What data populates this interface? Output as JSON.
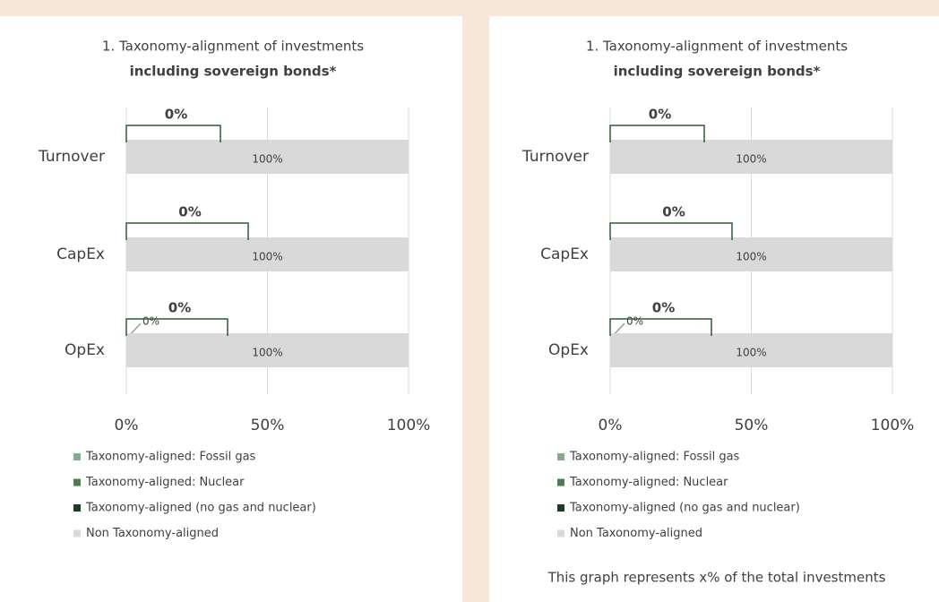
{
  "chart_data": [
    {
      "type": "stacked-barh",
      "title": "1. Taxonomy-alignment of investments",
      "subtitle": "including sovereign bonds*",
      "categories": [
        "Turnover",
        "CapEx",
        "OpEx"
      ],
      "series": [
        {
          "name": "Taxonomy-aligned: Fossil gas",
          "color": "#86a98a",
          "values": [
            0,
            0,
            0
          ],
          "value_labels": [
            null,
            null,
            "0%"
          ]
        },
        {
          "name": "Taxonomy-aligned: Nuclear",
          "color": "#4f7a55",
          "values": [
            0,
            0,
            0
          ]
        },
        {
          "name": "Taxonomy-aligned (no gas and nuclear)",
          "color": "#1f3a22",
          "values": [
            0,
            0,
            0
          ]
        },
        {
          "name": "Non Taxonomy-aligned",
          "color": "#d9d9d9",
          "values": [
            100,
            100,
            100
          ],
          "value_labels": [
            "100%",
            "100%",
            "100%"
          ]
        }
      ],
      "aligned_totals": [
        0,
        0,
        0
      ],
      "aligned_total_labels": [
        "0%",
        "0%",
        "0%"
      ],
      "xlim": [
        0,
        100
      ],
      "xticks": [
        {
          "value": 0,
          "label": "0%"
        },
        {
          "value": 50,
          "label": "50%"
        },
        {
          "value": 100,
          "label": "100%"
        }
      ],
      "grid": true
    },
    {
      "type": "stacked-barh",
      "title": "1. Taxonomy-alignment of investments",
      "subtitle": "including sovereign bonds*",
      "categories": [
        "Turnover",
        "CapEx",
        "OpEx"
      ],
      "series": [
        {
          "name": "Taxonomy-aligned: Fossil gas",
          "color": "#86a98a",
          "values": [
            0,
            0,
            0
          ],
          "value_labels": [
            null,
            null,
            "0%"
          ]
        },
        {
          "name": "Taxonomy-aligned: Nuclear",
          "color": "#4f7a55",
          "values": [
            0,
            0,
            0
          ]
        },
        {
          "name": "Taxonomy-aligned (no gas and nuclear)",
          "color": "#1f3a22",
          "values": [
            0,
            0,
            0
          ]
        },
        {
          "name": "Non Taxonomy-aligned",
          "color": "#d9d9d9",
          "values": [
            100,
            100,
            100
          ],
          "value_labels": [
            "100%",
            "100%",
            "100%"
          ]
        }
      ],
      "aligned_totals": [
        0,
        0,
        0
      ],
      "aligned_total_labels": [
        "0%",
        "0%",
        "0%"
      ],
      "xlim": [
        0,
        100
      ],
      "xticks": [
        {
          "value": 0,
          "label": "0%"
        },
        {
          "value": 50,
          "label": "50%"
        },
        {
          "value": 100,
          "label": "100%"
        }
      ],
      "grid": true,
      "footnote": "This graph represents x% of the total investments"
    }
  ]
}
